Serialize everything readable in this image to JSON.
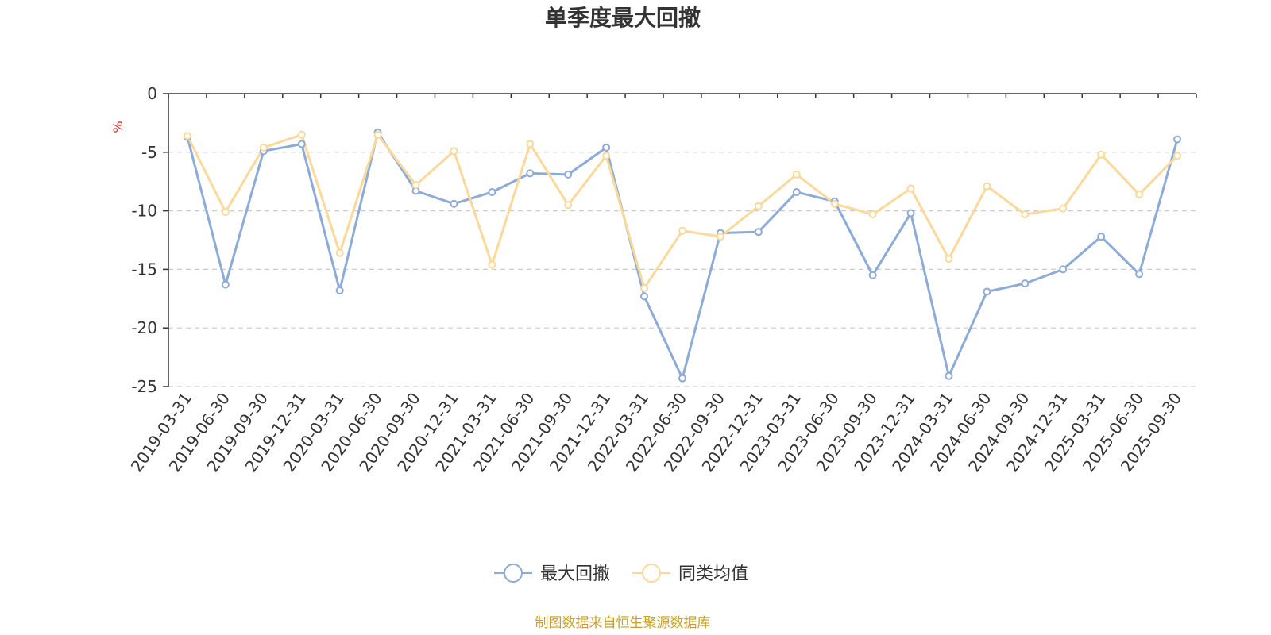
{
  "colors": {
    "series_primary": "#8dabd8",
    "series_secondary": "#fbd99a",
    "unit": "#e02020",
    "source": "#c8a028",
    "axis": "#333333",
    "grid": "#cccccc"
  },
  "source_text": "制图数据来自恒生聚源数据库",
  "chart_data": {
    "type": "line",
    "title": "单季度最大回撤",
    "ylabel": "%",
    "xlabel": "",
    "ylim": [
      -25,
      0
    ],
    "yticks": [
      0,
      -5,
      -10,
      -15,
      -20,
      -25
    ],
    "grid": "horizontal-dashed",
    "legend_position": "bottom-center",
    "x": [
      "2019-03-31",
      "2019-06-30",
      "2019-09-30",
      "2019-12-31",
      "2020-03-31",
      "2020-06-30",
      "2020-09-30",
      "2020-12-31",
      "2021-03-31",
      "2021-06-30",
      "2021-09-30",
      "2021-12-31",
      "2022-03-31",
      "2022-06-30",
      "2022-09-30",
      "2022-12-31",
      "2023-03-31",
      "2023-06-30",
      "2023-09-30",
      "2023-12-31",
      "2024-03-31",
      "2024-06-30",
      "2024-09-30",
      "2024-12-31",
      "2025-03-31",
      "2025-06-30",
      "2025-09-30"
    ],
    "series": [
      {
        "name": "最大回撤",
        "color": "#8dabd8",
        "values": [
          -3.7,
          -16.3,
          -4.9,
          -4.3,
          -16.8,
          -3.3,
          -8.3,
          -9.4,
          -8.4,
          -6.8,
          -6.9,
          -4.6,
          -17.3,
          -24.3,
          -11.9,
          -11.8,
          -8.4,
          -9.2,
          -15.5,
          -10.2,
          -24.1,
          -16.9,
          -16.2,
          -15.0,
          -12.2,
          -15.4,
          -3.9
        ]
      },
      {
        "name": "同类均值",
        "color": "#fbd99a",
        "values": [
          -3.6,
          -10.1,
          -4.6,
          -3.5,
          -13.6,
          -3.5,
          -7.8,
          -4.9,
          -14.6,
          -4.3,
          -9.5,
          -5.3,
          -16.6,
          -11.7,
          -12.2,
          -9.6,
          -6.9,
          -9.4,
          -10.3,
          -8.1,
          -14.1,
          -7.9,
          -10.3,
          -9.8,
          -5.2,
          -8.6,
          -5.3
        ]
      }
    ]
  }
}
